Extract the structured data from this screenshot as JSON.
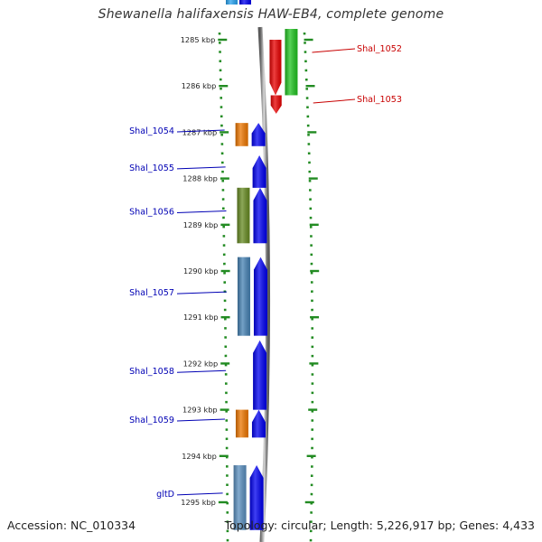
{
  "title": "Shewanella halifaxensis HAW-EB4, complete genome",
  "footer": {
    "accession": "Accession: NC_010334",
    "summary": "Topology: circular; Length: 5,226,917 bp; Genes: 4,433"
  },
  "genome_view": {
    "start_kbp": 1284.6,
    "end_kbp": 1295.5,
    "ticks": [
      "1285 kbp",
      "1286 kbp",
      "1287 kbp",
      "1288 kbp",
      "1289 kbp",
      "1290 kbp",
      "1291 kbp",
      "1292 kbp",
      "1293 kbp",
      "1294 kbp",
      "1295 kbp"
    ],
    "genes": [
      {
        "label": "Shal_1052",
        "strand": "reverse",
        "start_kbp": 1285.0,
        "end_kbp": 1286.2,
        "cog_color": "#e80000",
        "has_cds": true,
        "cds_color": "#22c422"
      },
      {
        "label": "Shal_1053",
        "strand": "reverse",
        "start_kbp": 1286.2,
        "end_kbp": 1286.6,
        "cog_color": "#e80000",
        "has_cds": false
      },
      {
        "label": "Shal_1054",
        "strand": "forward",
        "start_kbp": 1286.8,
        "end_kbp": 1287.3,
        "cog_color": "#ee7700",
        "has_cds": true
      },
      {
        "label": "Shal_1055",
        "strand": "forward",
        "start_kbp": 1287.5,
        "end_kbp": 1288.2,
        "cog_color": "",
        "has_cds": true
      },
      {
        "label": "Shal_1056",
        "strand": "forward",
        "start_kbp": 1288.2,
        "end_kbp": 1289.4,
        "cog_color": "#668a22",
        "has_cds": true
      },
      {
        "label": "Shal_1057",
        "strand": "forward",
        "start_kbp": 1289.7,
        "end_kbp": 1291.4,
        "cog_color": "#4682b4",
        "has_cds": true
      },
      {
        "label": "Shal_1058",
        "strand": "forward",
        "start_kbp": 1291.5,
        "end_kbp": 1293.0,
        "cog_color": "",
        "has_cds": true
      },
      {
        "label": "Shal_1059",
        "strand": "forward",
        "start_kbp": 1293.0,
        "end_kbp": 1293.6,
        "cog_color": "#ee7700",
        "has_cds": true
      },
      {
        "label": "gltD",
        "strand": "forward",
        "start_kbp": 1294.2,
        "end_kbp": 1295.6,
        "cog_color": "#5a8fbf",
        "has_cds": true
      }
    ],
    "top_partial_gene": {
      "strand": "forward",
      "cog_color": "#29a3f0"
    },
    "colors": {
      "forward_label": "#0000b4",
      "reverse_label": "#c80000",
      "forward_cds": "#0000f0",
      "tick": "#228b22",
      "backbone": "#909090"
    }
  }
}
